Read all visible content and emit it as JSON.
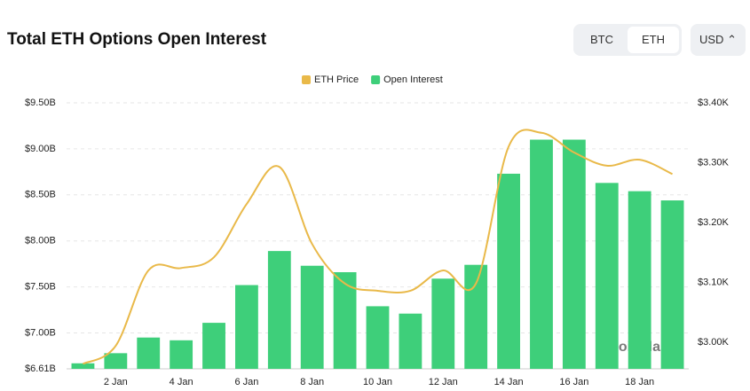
{
  "header": {
    "title": "Total ETH Options Open Interest",
    "tabs": [
      "BTC",
      "ETH"
    ],
    "active_tab": "ETH",
    "currency": "USD"
  },
  "watermark": "coinglass",
  "chart_data": {
    "type": "bar_line",
    "categories": [
      null,
      "2 Jan",
      null,
      "4 Jan",
      null,
      "6 Jan",
      null,
      "8 Jan",
      null,
      "10 Jan",
      null,
      "12 Jan",
      null,
      "14 Jan",
      null,
      "16 Jan",
      null,
      "18 Jan",
      null
    ],
    "series": [
      {
        "name": "ETH Price",
        "color": "#e9b949",
        "type": "line",
        "axis": "y2",
        "values": [
          2964,
          2994,
          3120,
          3124,
          3142,
          3231,
          3293,
          3164,
          3098,
          3086,
          3086,
          3120,
          3098,
          3327,
          3350,
          3317,
          3295,
          3305,
          3281
        ]
      },
      {
        "name": "Open Interest",
        "color": "#3ecf7a",
        "type": "bar",
        "values": [
          6670000000,
          6780000000,
          6950000000,
          6920000000,
          7110000000,
          7520000000,
          7890000000,
          7730000000,
          7660000000,
          7290000000,
          7210000000,
          7590000000,
          7740000000,
          8730000000,
          9100000000,
          9100000000,
          8630000000,
          8540000000,
          8440000000
        ]
      }
    ],
    "ylim": [
      6610000000,
      9500000000
    ],
    "yticks": [
      {
        "value": 6610000000,
        "label": "$6.61B"
      },
      {
        "value": 7000000000,
        "label": "$7.00B"
      },
      {
        "value": 7500000000,
        "label": "$7.50B"
      },
      {
        "value": 8000000000,
        "label": "$8.00B"
      },
      {
        "value": 8500000000,
        "label": "$8.50B"
      },
      {
        "value": 9000000000,
        "label": "$9.00B"
      },
      {
        "value": 9500000000,
        "label": "$9.50B"
      }
    ],
    "y2lim": [
      2955.6,
      3400
    ],
    "y2ticks": [
      {
        "value": 3000,
        "label": "$3.00K"
      },
      {
        "value": 3100,
        "label": "$3.10K"
      },
      {
        "value": 3200,
        "label": "$3.20K"
      },
      {
        "value": 3300,
        "label": "$3.30K"
      },
      {
        "value": 3400,
        "label": "$3.40K"
      }
    ],
    "grid": true,
    "legend": "top"
  }
}
